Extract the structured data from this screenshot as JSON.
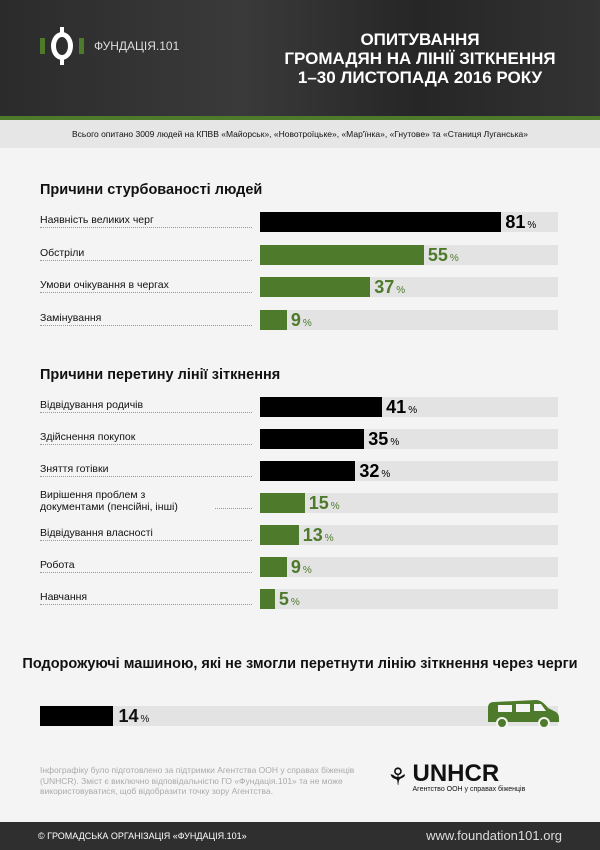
{
  "header": {
    "logo_text": "ФУНДАЦІЯ.101",
    "title_lines": [
      "ОПИТУВАННЯ",
      "ГРОМАДЯН НА ЛІНІЇ ЗІТКНЕННЯ",
      "1–30 ЛИСТОПАДА 2016 РОКУ"
    ]
  },
  "subtitle": "Всього опитано 3009 людей на КПВВ «Майорськ», «Новотроїцьке», «Мар'їнка», «Гнутове» та «Станиця Луганська»",
  "chart_data": [
    {
      "type": "bar",
      "title": "Причини стурбованості людей",
      "unit": "%",
      "xlim": [
        0,
        100
      ],
      "items": [
        {
          "label": "Наявність великих черг",
          "value": 81,
          "color": "#000000"
        },
        {
          "label": "Обстріли",
          "value": 55,
          "color": "#4e7a2c"
        },
        {
          "label": "Умови очікування в чергах",
          "value": 37,
          "color": "#4e7a2c"
        },
        {
          "label": "Замінування",
          "value": 9,
          "color": "#4e7a2c"
        }
      ]
    },
    {
      "type": "bar",
      "title": "Причини перетину лінії зіткнення",
      "unit": "%",
      "xlim": [
        0,
        100
      ],
      "items": [
        {
          "label": "Відвідування родичів",
          "value": 41,
          "color": "#000000"
        },
        {
          "label": "Здійснення покупок",
          "value": 35,
          "color": "#000000"
        },
        {
          "label": "Зняття готівки",
          "value": 32,
          "color": "#000000"
        },
        {
          "label": "Вирішення проблем з документами (пенсійні, інші)",
          "value": 15,
          "color": "#4e7a2c"
        },
        {
          "label": "Відвідування власності",
          "value": 13,
          "color": "#4e7a2c"
        },
        {
          "label": "Робота",
          "value": 9,
          "color": "#4e7a2c"
        },
        {
          "label": "Навчання",
          "value": 5,
          "color": "#4e7a2c"
        }
      ]
    },
    {
      "type": "bar",
      "title": "Подорожуючі машиною, які не змогли перетнути лінію зіткнення через черги",
      "unit": "%",
      "xlim": [
        0,
        100
      ],
      "items": [
        {
          "label": "",
          "value": 14,
          "color": "#000000"
        }
      ]
    }
  ],
  "note": "Інфографіку було підготовлено за підтримки Агентства ООН у справах біженців (UNHCR). Зміст є виключно відповідальністю ГО «Фундація.101» та не може використовуватися, щоб відобразити точку зору Агентства.",
  "unhcr": {
    "name": "UNHCR",
    "tagline": "Агентство ООН у справах біженців"
  },
  "footer": {
    "copyright": "© ГРОМАДСЬКА ОРГАНІЗАЦІЯ «ФУНДАЦІЯ.101»",
    "url": "www.foundation101.org"
  }
}
